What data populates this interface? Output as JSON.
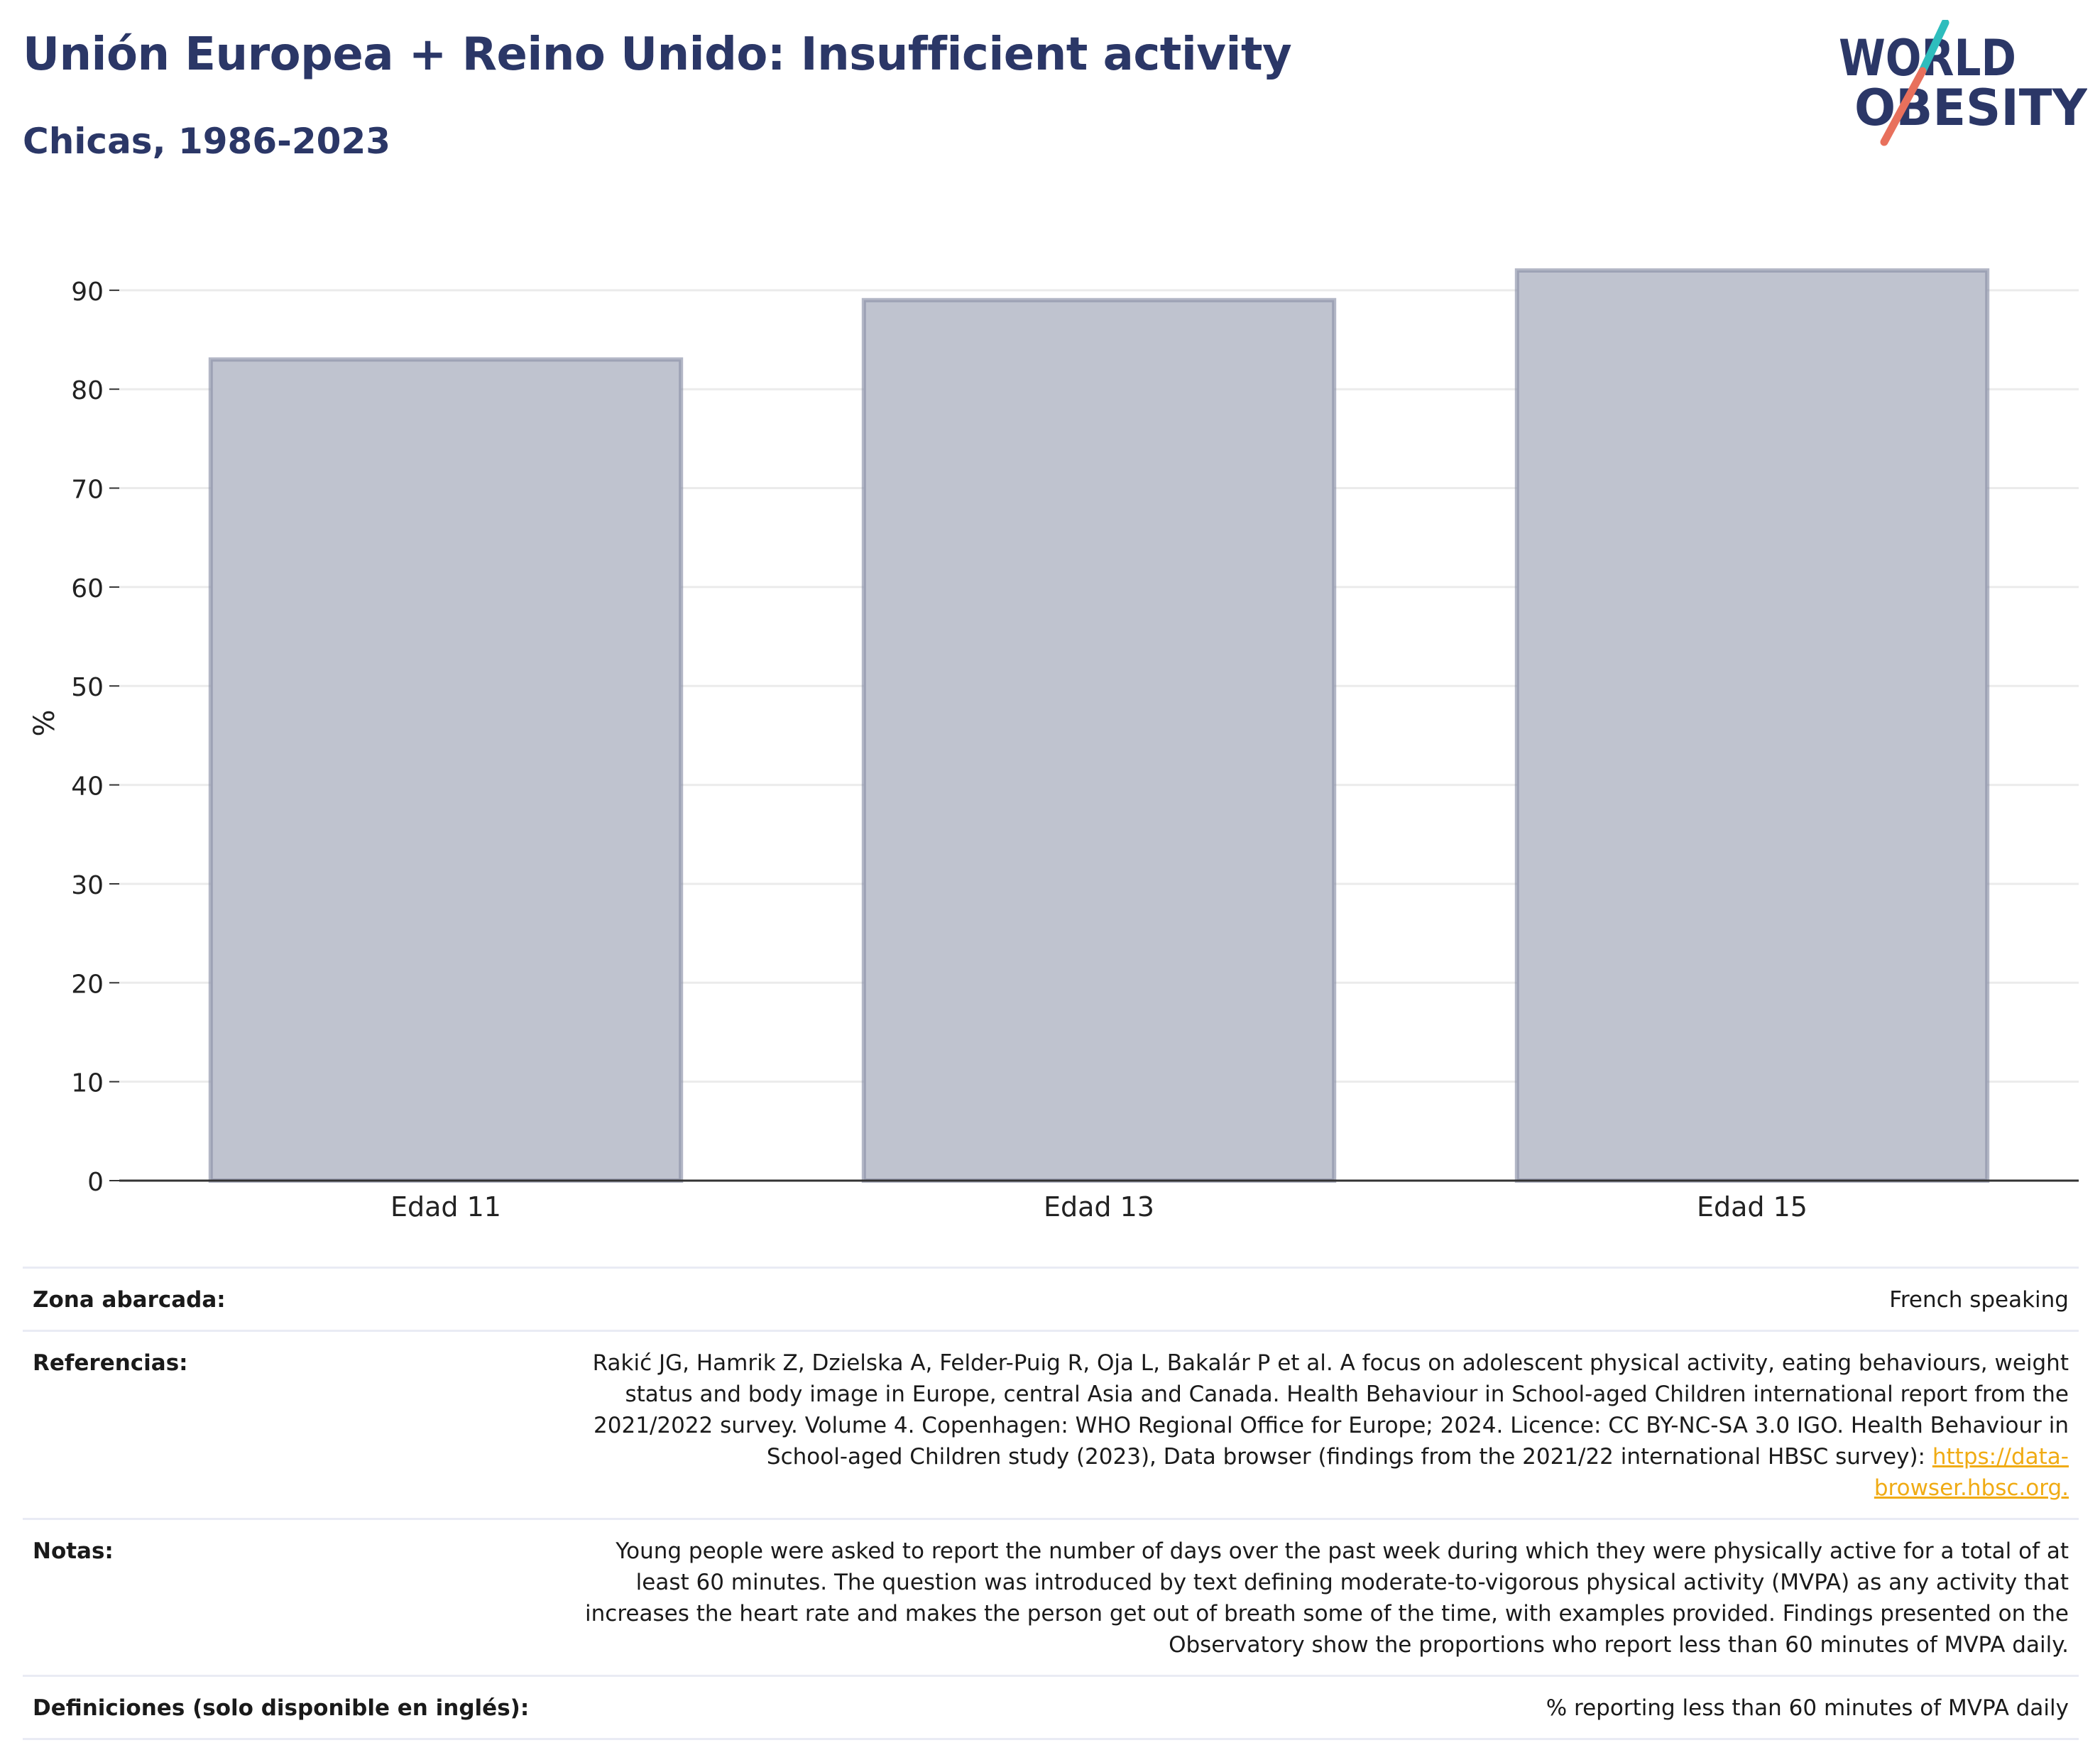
{
  "header": {
    "title": "Unión Europea + Reino Unido: Insufficient activity",
    "subtitle": "Chicas, 1986-2023"
  },
  "logo": {
    "line1": "WORLD",
    "line2": "OBESITY",
    "colors": {
      "text": "#2b3767",
      "slash_top": "#2ebdbd",
      "slash_bottom": "#e8705c"
    }
  },
  "chart_data": {
    "type": "bar",
    "categories": [
      "Edad 11",
      "Edad 13",
      "Edad 15"
    ],
    "values": [
      83,
      89,
      92
    ],
    "title": "Unión Europea + Reino Unido: Insufficient activity",
    "subtitle": "Chicas, 1986-2023",
    "xlabel": "",
    "ylabel": "%",
    "ylim": [
      0,
      90
    ],
    "yticks": [
      0,
      10,
      20,
      30,
      40,
      50,
      60,
      70,
      80,
      90
    ],
    "grid": true,
    "legend": "none",
    "colors": {
      "bar_fill": "#bfc3cf",
      "bar_stroke": "#8a90a8",
      "grid": "#ebebeb",
      "axis": "#333333"
    }
  },
  "info": {
    "area_label": "Zona abarcada:",
    "area_value": "French speaking",
    "references_label": "Referencias:",
    "references_text": "Rakić JG, Hamrik Z, Dzielska A, Felder-Puig R, Oja L, Bakalár P et al. A focus on adolescent physical activity, eating behaviours, weight status and body image in Europe, central Asia and Canada. Health Behaviour in School-aged Children international report from the 2021/2022 survey. Volume 4. Copenhagen: WHO Regional Office for Europe; 2024. Licence: CC BY-NC-SA 3.0 IGO. Health Behaviour in School-aged Children study (2023), Data browser (findings from the 2021/22 international HBSC survey): ",
    "references_link": "https://data-browser.hbsc.org.",
    "notes_label": "Notas:",
    "notes_text": "Young people were asked to report the number of days over the past week during which they were physically active for a total of at least 60 minutes. The question was introduced by text defining moderate-to-vigorous physical activity (MVPA) as any activity that increases the heart rate and makes the person get out of breath some of the time, with examples provided. Findings presented on the Observatory show the proportions who report less than 60 minutes of MVPA daily.",
    "definitions_label": "Definiciones (solo disponible en inglés):",
    "definitions_value": "% reporting less than 60 minutes of MVPA daily"
  }
}
